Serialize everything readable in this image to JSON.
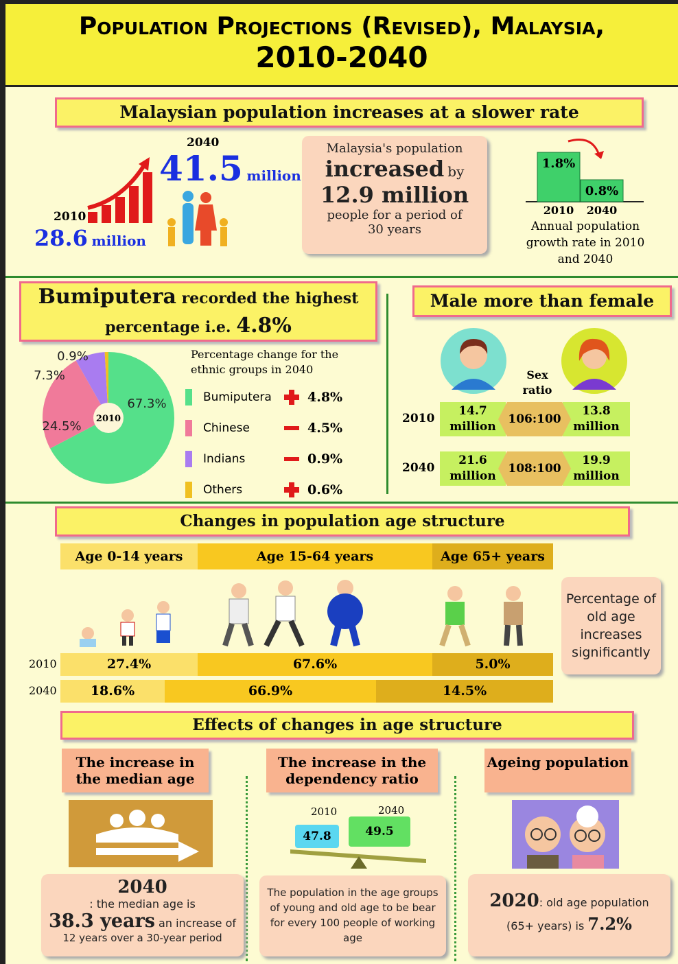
{
  "header": {
    "title": "Population Projections (Revised), Malaysia,",
    "years": "2010-2040"
  },
  "growth": {
    "heading": "Malaysian population increases at a slower rate",
    "year_end": "2040",
    "pop_end": 41.5,
    "year_start": "2010",
    "pop_start": 28.6,
    "unit": "million",
    "increase": {
      "lead": "Malaysia's population",
      "verb": "increased",
      "by": "by",
      "amount": "12.9 million",
      "period_text": "people for a period of",
      "period": "30 years"
    },
    "rate": {
      "categories": [
        "2010",
        "2040"
      ],
      "values": [
        1.8,
        0.8
      ],
      "value_labels": [
        "1.8%",
        "0.8%"
      ],
      "colors": [
        "#3fd06a",
        "#3fd06a"
      ],
      "caption": "Annual population growth rate in 2010 and 2040"
    }
  },
  "ethnic": {
    "heading_1": "Bumiputera",
    "heading_2": "recorded the highest",
    "heading_3": "percentage i.e.",
    "pie": {
      "center": "2010",
      "values": [
        67.3,
        24.5,
        7.3,
        0.9
      ],
      "value_labels": [
        "67.3%",
        "24.5%",
        "7.3%",
        "0.9%"
      ],
      "colors": [
        "#55e08a",
        "#f07a9a",
        "#a97cf0",
        "#f0c020"
      ]
    },
    "legend_title": "Percentage change for the ethnic groups in 2040",
    "groups": [
      "Bumiputera",
      "Chinese",
      "Indians",
      "Others"
    ],
    "change_2040": [
      4.8,
      -4.5,
      -0.9,
      0.6
    ],
    "change_labels": [
      "4.8%",
      "4.5%",
      "0.9%",
      "0.6%"
    ]
  },
  "sex": {
    "heading": "Male more than female",
    "ratio_label": "Sex ratio",
    "rows": [
      {
        "year": "2010",
        "male": "14.7 million",
        "ratio": "106:100",
        "female": "13.8 million"
      },
      {
        "year": "2040",
        "male": "21.6 million",
        "ratio": "108:100",
        "female": "19.9 million"
      }
    ]
  },
  "age": {
    "heading": "Changes in population age structure",
    "groups": [
      "Age 0-14 years",
      "Age 15-64 years",
      "Age 65+ years"
    ],
    "rows": [
      {
        "year": "2010",
        "values": [
          "27.4%",
          "67.6%",
          "5.0%"
        ]
      },
      {
        "year": "2040",
        "values": [
          "18.6%",
          "66.9%",
          "14.5%"
        ]
      }
    ],
    "note": "Percentage of old age increases significantly"
  },
  "effects": {
    "heading": "Effects of  changes in age structure",
    "median": {
      "title": "The increase in the median age",
      "year": "2040",
      "text_1": ": the median age is",
      "age": "38.3 years",
      "text_2": "an increase of",
      "text_3": "12 years over a 30-year period"
    },
    "dependency": {
      "title": "The increase in the dependency ratio",
      "years": [
        "2010",
        "2040"
      ],
      "values": [
        "47.8",
        "49.5"
      ],
      "text": "The population in the age groups of young and old age to be bear for every 100 people of working age"
    },
    "ageing": {
      "title": "Ageing population",
      "year": "2020",
      "text_1": ": old age population",
      "text_2": "(65+ years) is",
      "value": "7.2%"
    }
  }
}
